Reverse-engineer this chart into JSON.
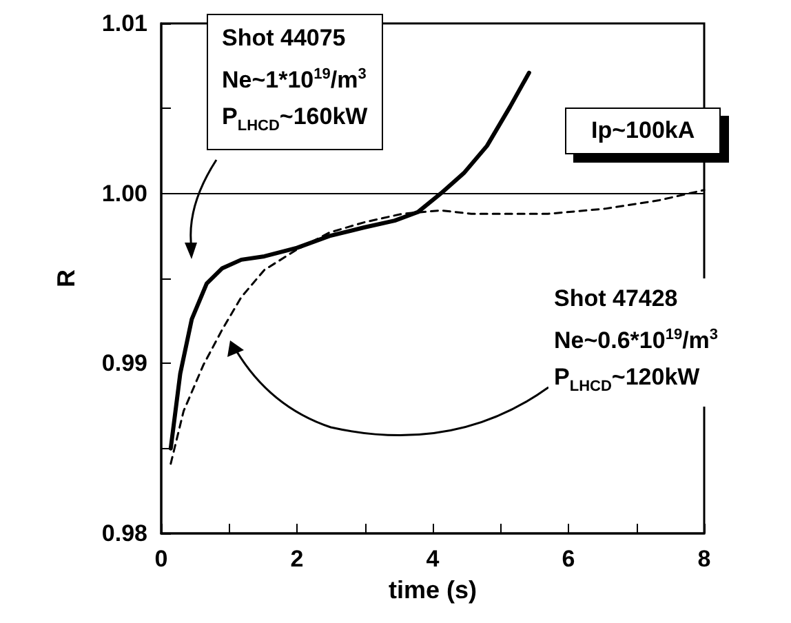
{
  "chart_data": {
    "type": "line",
    "xlabel": "time (s)",
    "ylabel": "R",
    "xlim": [
      0,
      8
    ],
    "xticks": [
      0,
      2,
      4,
      6,
      8
    ],
    "ylim": [
      0.98,
      1.01
    ],
    "yticks": [
      {
        "value": 0.98,
        "label": "0.98"
      },
      {
        "value": 0.99,
        "label": "0.99"
      },
      {
        "value": 1.0,
        "label": "1.00"
      },
      {
        "value": 1.01,
        "label": "1.01"
      }
    ],
    "series": [
      {
        "color": "#000000",
        "line_style": "solid",
        "x": [
          0.14,
          0.28,
          0.45,
          0.67,
          0.9,
          1.18,
          1.52,
          2.0,
          2.48,
          2.99,
          3.44,
          3.78,
          4.12,
          4.46,
          4.8,
          5.14,
          5.42
        ],
        "values": [
          0.985,
          0.9894,
          0.9926,
          0.9947,
          0.9956,
          0.9961,
          0.9963,
          0.9968,
          0.9975,
          0.998,
          0.9984,
          0.9989,
          1.0,
          1.0012,
          1.0028,
          1.0051,
          1.0071
        ]
      },
      {
        "color": "#000000",
        "line_style": "dashed",
        "x": [
          0.14,
          0.33,
          0.62,
          0.9,
          1.18,
          1.52,
          2.0,
          2.48,
          2.99,
          3.55,
          4.12,
          4.57,
          5.7,
          6.54,
          7.34,
          8.0
        ],
        "values": [
          0.9841,
          0.9872,
          0.9899,
          0.992,
          0.9939,
          0.9955,
          0.9967,
          0.9977,
          0.9983,
          0.9988,
          0.999,
          0.9988,
          0.9988,
          0.9991,
          0.9996,
          1.0002
        ]
      }
    ],
    "ref_lines": [
      {
        "axis": "y",
        "value": 1.0,
        "color": "#000000",
        "line_style": "solid"
      }
    ],
    "grid": false,
    "annotations": [
      "Shot 44075\nNe~1*10$^{19}$/m$^{3}$\nP$_{LHCD}$~160kW",
      "Ip~100kA",
      "Shot 47428\nNe~0.6*10$^{19}$/m$^{3}$\nP$_{LHCD}$~120kW"
    ]
  }
}
